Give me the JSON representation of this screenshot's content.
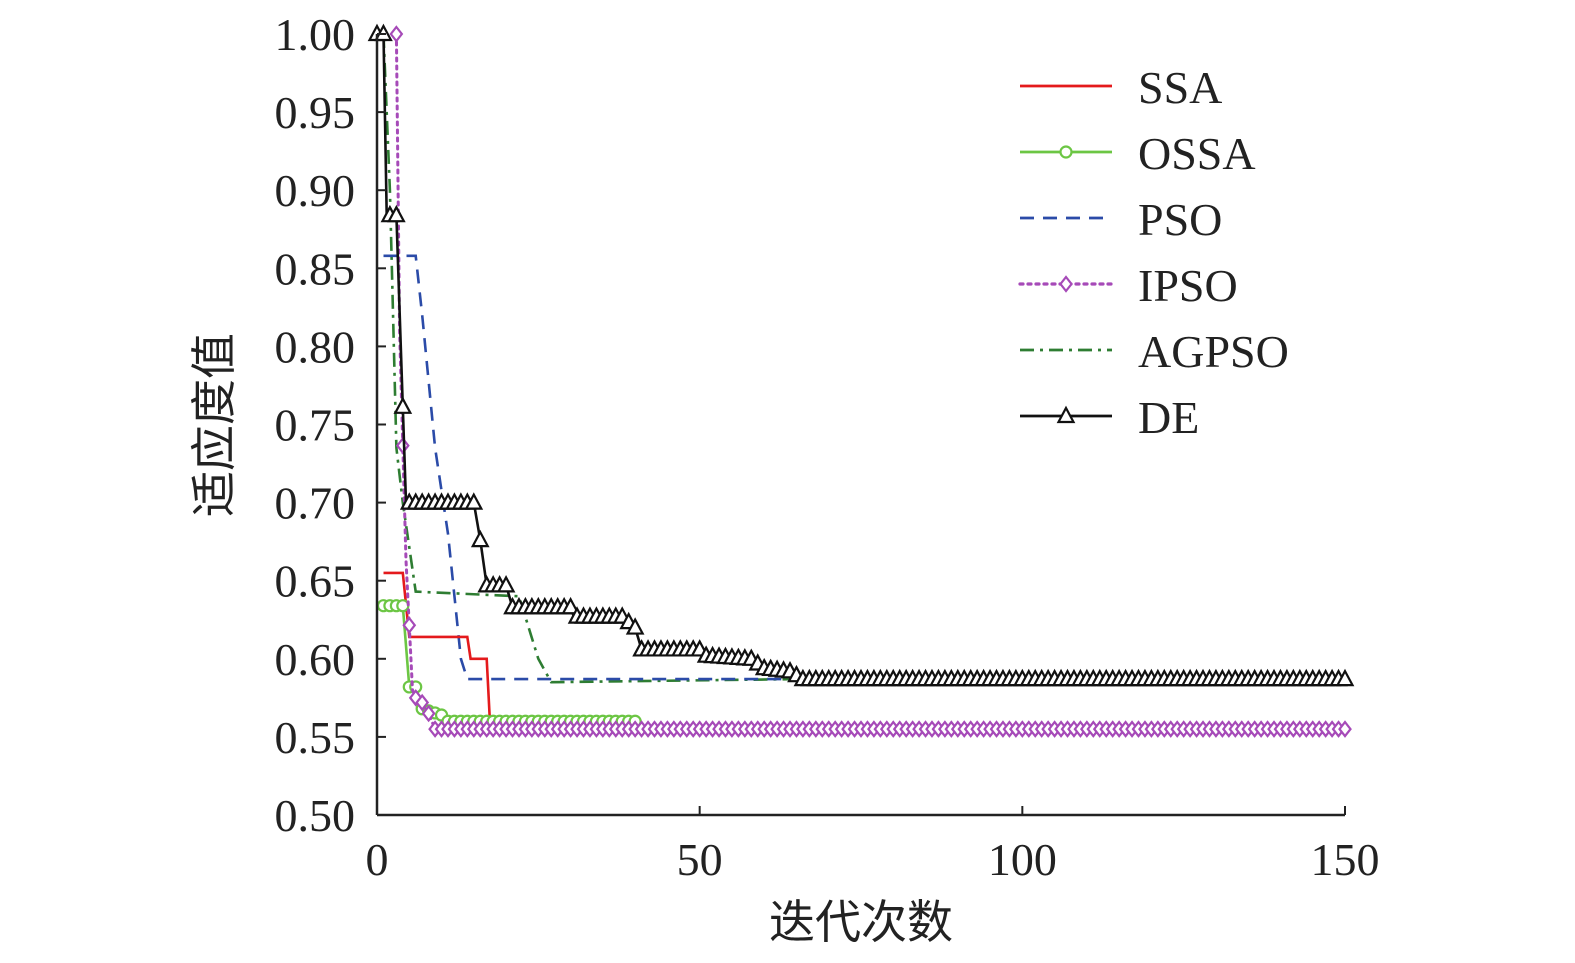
{
  "chart_data": {
    "type": "line",
    "title": "",
    "xlabel": "迭代次数",
    "ylabel": "适应度值",
    "xlim": [
      0,
      150
    ],
    "ylim": [
      0.5,
      1.0
    ],
    "xticks": [
      "0",
      "50",
      "100",
      "150"
    ],
    "yticks": [
      "0.50",
      "0.55",
      "0.60",
      "0.65",
      "0.70",
      "0.75",
      "0.80",
      "0.85",
      "0.90",
      "0.95",
      "1.00"
    ],
    "legend_position": "top-right",
    "series": [
      {
        "name": "SSA",
        "color": "#e41a1c",
        "dash": "solid",
        "marker": "none",
        "points": [
          [
            1,
            0.655
          ],
          [
            4,
            0.655
          ],
          [
            5,
            0.614
          ],
          [
            14,
            0.614
          ],
          [
            14.5,
            0.6
          ],
          [
            17,
            0.6
          ],
          [
            17.5,
            0.56
          ],
          [
            40,
            0.56
          ]
        ]
      },
      {
        "name": "OSSA",
        "color": "#6cc644",
        "dash": "solid",
        "marker": "circle",
        "points": [
          [
            1,
            0.634
          ],
          [
            4,
            0.634
          ],
          [
            5,
            0.582
          ],
          [
            6,
            0.582
          ],
          [
            7,
            0.568
          ],
          [
            10,
            0.564
          ],
          [
            10.5,
            0.56
          ],
          [
            40,
            0.56
          ]
        ]
      },
      {
        "name": "PSO",
        "color": "#2b4ba8",
        "dash": "dashed",
        "marker": "none",
        "points": [
          [
            1,
            0.858
          ],
          [
            6,
            0.858
          ],
          [
            7,
            0.82
          ],
          [
            9,
            0.735
          ],
          [
            11,
            0.68
          ],
          [
            13,
            0.6
          ],
          [
            14,
            0.587
          ],
          [
            150,
            0.587
          ]
        ]
      },
      {
        "name": "IPSO",
        "color": "#a64ab8",
        "dash": "dotted",
        "marker": "diamond",
        "points": [
          [
            3,
            1.0
          ],
          [
            3.5,
            0.81
          ],
          [
            4.5,
            0.663
          ],
          [
            5.5,
            0.58
          ],
          [
            6,
            0.575
          ],
          [
            7,
            0.572
          ],
          [
            8,
            0.565
          ],
          [
            9,
            0.555
          ],
          [
            150,
            0.555
          ]
        ]
      },
      {
        "name": "AGPSO",
        "color": "#2e7d32",
        "dash": "dashdot",
        "marker": "none",
        "points": [
          [
            1,
            1.0
          ],
          [
            2,
            0.9
          ],
          [
            3,
            0.735
          ],
          [
            4,
            0.7
          ],
          [
            6,
            0.643
          ],
          [
            22,
            0.64
          ],
          [
            25,
            0.6
          ],
          [
            27,
            0.585
          ],
          [
            65,
            0.587
          ],
          [
            150,
            0.587
          ]
        ]
      },
      {
        "name": "DE",
        "color": "#111111",
        "dash": "solid",
        "marker": "triangle",
        "points": [
          [
            0,
            1.0
          ],
          [
            1,
            1.0
          ],
          [
            1.5,
            0.884
          ],
          [
            3,
            0.884
          ],
          [
            4.5,
            0.7
          ],
          [
            15,
            0.7
          ],
          [
            16,
            0.676
          ],
          [
            17,
            0.647
          ],
          [
            20,
            0.647
          ],
          [
            21,
            0.633
          ],
          [
            30,
            0.633
          ],
          [
            30.5,
            0.627
          ],
          [
            38,
            0.627
          ],
          [
            40,
            0.62
          ],
          [
            41,
            0.606
          ],
          [
            50,
            0.606
          ],
          [
            51,
            0.602
          ],
          [
            58,
            0.6
          ],
          [
            60,
            0.594
          ],
          [
            64,
            0.592
          ],
          [
            66,
            0.587
          ],
          [
            150,
            0.587
          ]
        ]
      }
    ]
  }
}
